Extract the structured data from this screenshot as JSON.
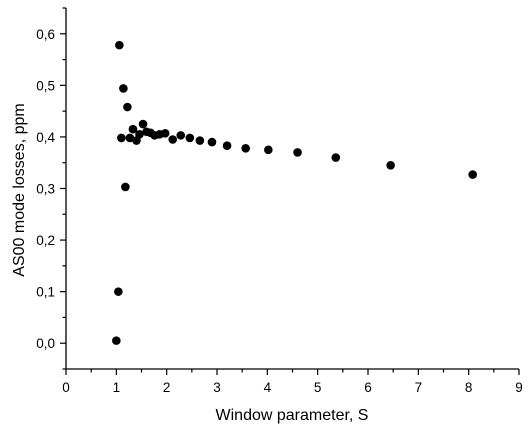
{
  "chart_data": {
    "type": "scatter",
    "title": "",
    "xlabel": "Window parameter, S",
    "ylabel": "AS00 mode losses, ppm",
    "xlim": [
      0,
      9
    ],
    "ylim": [
      -0.05,
      0.65
    ],
    "x_ticks": [
      0,
      1,
      2,
      3,
      4,
      5,
      6,
      7,
      8,
      9
    ],
    "x_tick_labels": [
      "0",
      "1",
      "2",
      "3",
      "4",
      "5",
      "6",
      "7",
      "8",
      "9"
    ],
    "y_ticks": [
      0.0,
      0.1,
      0.2,
      0.3,
      0.4,
      0.5,
      0.6
    ],
    "y_tick_labels": [
      "0,0",
      "0,1",
      "0,2",
      "0,3",
      "0,4",
      "0,5",
      "0,6"
    ],
    "grid": false,
    "legend": "none",
    "marker_color": "#000000",
    "series": [
      {
        "points": [
          [
            1.0,
            0.005
          ],
          [
            1.04,
            0.1
          ],
          [
            1.06,
            0.578
          ],
          [
            1.1,
            0.398
          ],
          [
            1.14,
            0.494
          ],
          [
            1.18,
            0.303
          ],
          [
            1.22,
            0.458
          ],
          [
            1.27,
            0.398
          ],
          [
            1.33,
            0.415
          ],
          [
            1.4,
            0.393
          ],
          [
            1.46,
            0.405
          ],
          [
            1.53,
            0.425
          ],
          [
            1.6,
            0.41
          ],
          [
            1.68,
            0.408
          ],
          [
            1.76,
            0.403
          ],
          [
            1.86,
            0.405
          ],
          [
            1.97,
            0.407
          ],
          [
            2.12,
            0.395
          ],
          [
            2.28,
            0.403
          ],
          [
            2.46,
            0.398
          ],
          [
            2.66,
            0.393
          ],
          [
            2.9,
            0.39
          ],
          [
            3.2,
            0.383
          ],
          [
            3.57,
            0.378
          ],
          [
            4.02,
            0.375
          ],
          [
            4.6,
            0.37
          ],
          [
            5.36,
            0.36
          ],
          [
            6.45,
            0.345
          ],
          [
            8.08,
            0.327
          ]
        ]
      }
    ]
  }
}
